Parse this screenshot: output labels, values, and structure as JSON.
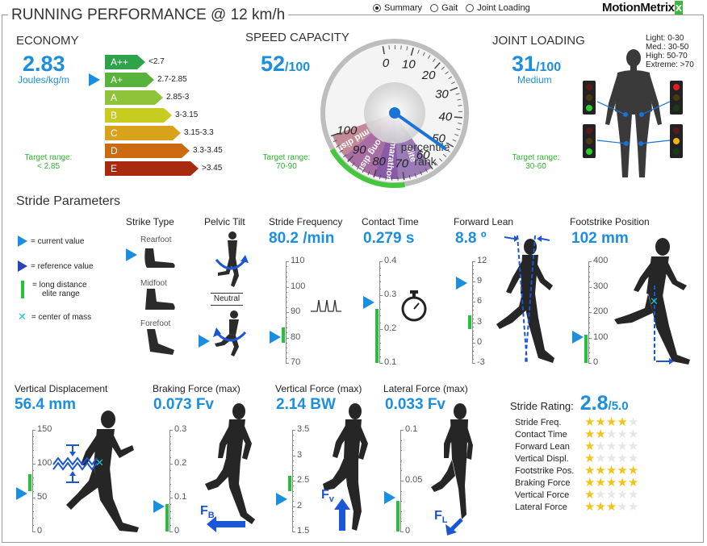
{
  "header": {
    "title": "RUNNING PERFORMANCE @ 12 km/h",
    "views": [
      {
        "label": "Summary",
        "selected": true
      },
      {
        "label": "Gait",
        "selected": false
      },
      {
        "label": "Joint Loading",
        "selected": false
      }
    ],
    "logo": "MotionMetrix",
    "logo_mark": "x"
  },
  "economy": {
    "title": "ECONOMY",
    "value": "2.83",
    "unit": "Joules/kg/m",
    "target_label": "Target range:",
    "target_value": "< 2.85",
    "bands": [
      {
        "grade": "A++",
        "range": "<2.7",
        "color": "#2fa34a"
      },
      {
        "grade": "A+",
        "range": "2.7-2.85",
        "color": "#57b33c"
      },
      {
        "grade": "A",
        "range": "2.85-3",
        "color": "#8ec33a"
      },
      {
        "grade": "B",
        "range": "3-3.15",
        "color": "#c7cc20"
      },
      {
        "grade": "C",
        "range": "3.15-3.3",
        "color": "#d9a21b"
      },
      {
        "grade": "D",
        "range": "3.3-3.45",
        "color": "#cc6a12"
      },
      {
        "grade": "E",
        "range": ">3.45",
        "color": "#a82b0f"
      }
    ]
  },
  "speed": {
    "title": "SPEED CAPACITY",
    "value": "52",
    "out_of": "/100",
    "target_label": "Target range:",
    "target_value": "70-90",
    "gauge_ticks": [
      "0",
      "10",
      "20",
      "30",
      "40",
      "50",
      "60",
      "70",
      "80",
      "90",
      "100"
    ],
    "zones": [
      "marathon",
      "long dist.",
      "mid dist",
      "elite"
    ],
    "center_label_1": "percentile",
    "center_label_2": "rank",
    "needle": 52
  },
  "joint": {
    "title": "JOINT LOADING",
    "value": "31",
    "out_of": "/100",
    "level": "Medium",
    "target_label": "Target range:",
    "target_value": "30-60",
    "scale": [
      "Light: 0-30",
      "Med.: 30-50",
      "High: 50-70",
      "Extreme: >70"
    ]
  },
  "stride": {
    "title": "Stride Parameters",
    "legend": [
      "= current value",
      "= reference value",
      "= long distance",
      "elite range",
      "= center of mass"
    ],
    "strike": {
      "title": "Strike Type",
      "types": [
        "Rearfoot",
        "Midfoot",
        "Forefoot"
      ]
    },
    "pelvic": {
      "title": "Pelvic Tilt",
      "label": "Neutral"
    },
    "frequency": {
      "title": "Stride Frequency",
      "value": "80.2 /min",
      "ticks": [
        "110",
        "100",
        "90",
        "80",
        "70"
      ],
      "current": 80.2,
      "range": [
        70,
        110
      ],
      "elite": [
        78,
        84
      ]
    },
    "contact": {
      "title": "Contact Time",
      "value": "0.279 s",
      "ticks": [
        "0.4",
        "0.3",
        "0.2",
        "0.1"
      ],
      "current": 0.279,
      "range": [
        0.1,
        0.4
      ],
      "elite": [
        0.1,
        0.26
      ]
    },
    "lean": {
      "title": "Forward Lean",
      "value": "8.8 º",
      "ticks": [
        "12",
        "9",
        "6",
        "3",
        "0",
        "-3"
      ],
      "current": 8.8,
      "range": [
        -3,
        12
      ],
      "elite": [
        2,
        4
      ]
    },
    "footstrike": {
      "title": "Footstrike Position",
      "value": "102 mm",
      "ticks": [
        "400",
        "300",
        "200",
        "100",
        "0"
      ],
      "current": 102,
      "range": [
        0,
        400
      ],
      "elite": [
        0,
        110
      ]
    }
  },
  "forces": {
    "vertical_disp": {
      "title": "Vertical Displacement",
      "value": "56.4 mm",
      "ticks": [
        "150",
        "100",
        "50",
        "0"
      ],
      "current": 56.4,
      "range": [
        0,
        150
      ],
      "elite": [
        60,
        85
      ]
    },
    "braking": {
      "title": "Braking Force (max)",
      "value": "0.073 Fv",
      "ticks": [
        "0.3",
        "0.2",
        "0.1",
        "0"
      ],
      "current": 0.073,
      "range": [
        0,
        0.3
      ],
      "elite": [
        0,
        0.08
      ],
      "arrow_label": "F",
      "arrow_sub": "B"
    },
    "vertical": {
      "title": "Vertical Force (max)",
      "value": "2.14 BW",
      "ticks": [
        "3.5",
        "3",
        "2.5",
        "2",
        "1.5"
      ],
      "current": 2.14,
      "range": [
        1.5,
        3.5
      ],
      "elite": [
        2.3,
        2.6
      ],
      "arrow_label": "F",
      "arrow_sub": "v"
    },
    "lateral": {
      "title": "Lateral Force (max)",
      "value": "0.033 Fv",
      "ticks": [
        "0.1",
        "0.05",
        "0"
      ],
      "current": 0.033,
      "range": [
        0,
        0.1
      ],
      "elite": [
        0,
        0.03
      ],
      "arrow_label": "F",
      "arrow_sub": "L"
    }
  },
  "rating": {
    "title": "Stride Rating:",
    "value": "2.8",
    "out_of": "/5.0",
    "items": [
      {
        "label": "Stride Freq.",
        "stars": 4
      },
      {
        "label": "Contact Time",
        "stars": 2
      },
      {
        "label": "Forward Lean",
        "stars": 1
      },
      {
        "label": "Vertical Displ.",
        "stars": 1
      },
      {
        "label": "Footstrike Pos.",
        "stars": 5
      },
      {
        "label": "Braking Force",
        "stars": 5
      },
      {
        "label": "Vertical Force",
        "stars": 1
      },
      {
        "label": "Lateral Force",
        "stars": 3
      }
    ]
  }
}
